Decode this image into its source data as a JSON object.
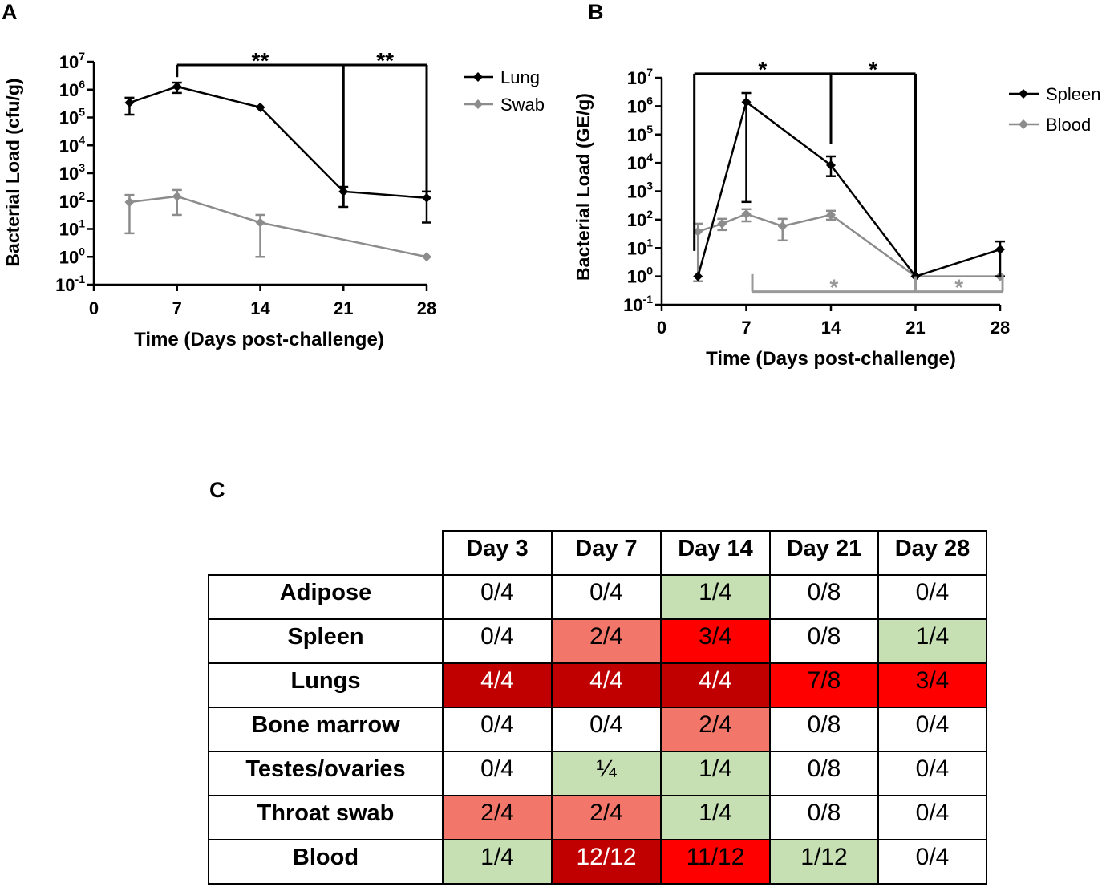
{
  "panels": {
    "a": "A",
    "b": "B",
    "c": "C"
  },
  "chart_data": [
    {
      "type": "line",
      "title": "",
      "xlabel": "Time (Days post-challenge)",
      "ylabel": "Bacterial Load (cfu/g)",
      "xlim": [
        0,
        28
      ],
      "ylim": [
        0.1,
        10000000
      ],
      "xticks": [
        "0",
        "7",
        "14",
        "21",
        "28"
      ],
      "yticks": [
        {
          "base": "10",
          "exp": "7"
        },
        {
          "base": "10",
          "exp": "6"
        },
        {
          "base": "10",
          "exp": "5"
        },
        {
          "base": "10",
          "exp": "4"
        },
        {
          "base": "10",
          "exp": "3"
        },
        {
          "base": "10",
          "exp": "2"
        },
        {
          "base": "10",
          "exp": "1"
        },
        {
          "base": "10",
          "exp": "0"
        },
        {
          "base": "10",
          "exp": "-1"
        }
      ],
      "grid": false,
      "legend": "right",
      "series": [
        {
          "name": "Lung",
          "color": "#000000",
          "points": [
            {
              "x": 3,
              "y": 340000,
              "err_low": 126000,
              "err_high": 510000
            },
            {
              "x": 7,
              "y": 1280000,
              "err_low": 760000,
              "err_high": 1780000
            },
            {
              "x": 14,
              "y": 230000
            },
            {
              "x": 21,
              "y": 220,
              "err_low": 62,
              "err_high": 324
            },
            {
              "x": 28,
              "y": 130,
              "err_low": 17,
              "err_high": 220
            }
          ]
        },
        {
          "name": "Swab",
          "color": "#8c8c8c",
          "points": [
            {
              "x": 3,
              "y": 92,
              "err_low": 7,
              "err_high": 166
            },
            {
              "x": 7,
              "y": 147,
              "err_low": 32,
              "err_high": 250
            },
            {
              "x": 14,
              "y": 17,
              "err_low": 1,
              "err_high": 32
            },
            {
              "x": 28,
              "y": 1
            }
          ]
        }
      ],
      "brackets": [
        {
          "color": "#000000",
          "level": 7700000,
          "ends": [
            {
              "x": 7,
              "to": 2800000
            },
            {
              "x": 21,
              "to": 62
            },
            {
              "x": 28,
              "to": 130
            }
          ],
          "labels": [
            "**",
            "**"
          ]
        }
      ]
    },
    {
      "type": "line",
      "title": "",
      "xlabel": "Time (Days post-challenge)",
      "ylabel": "Bacterial Load (GE/g)",
      "xlim": [
        0,
        28
      ],
      "ylim": [
        0.1,
        10000000
      ],
      "xticks": [
        "0",
        "7",
        "14",
        "21",
        "28"
      ],
      "yticks": [
        {
          "base": "10",
          "exp": "7"
        },
        {
          "base": "10",
          "exp": "6"
        },
        {
          "base": "10",
          "exp": "5"
        },
        {
          "base": "10",
          "exp": "4"
        },
        {
          "base": "10",
          "exp": "3"
        },
        {
          "base": "10",
          "exp": "2"
        },
        {
          "base": "10",
          "exp": "1"
        },
        {
          "base": "10",
          "exp": "0"
        },
        {
          "base": "10",
          "exp": "-1"
        }
      ],
      "grid": false,
      "legend": "right",
      "series": [
        {
          "name": "Spleen",
          "color": "#000000",
          "points": [
            {
              "x": 3,
              "y": 1
            },
            {
              "x": 7,
              "y": 1400000,
              "err_low": 420,
              "err_high": 2900000
            },
            {
              "x": 14,
              "y": 8300,
              "err_low": 3400,
              "err_high": 17000
            },
            {
              "x": 21,
              "y": 1
            },
            {
              "x": 28,
              "y": 8.9,
              "err_low": 1,
              "err_high": 17
            }
          ]
        },
        {
          "name": "Blood",
          "color": "#8c8c8c",
          "points": [
            {
              "x": 3,
              "y": 38,
              "err_low": 0.67,
              "err_high": 72
            },
            {
              "x": 5,
              "y": 72,
              "err_low": 43,
              "err_high": 107
            },
            {
              "x": 7,
              "y": 158,
              "err_low": 87,
              "err_high": 234
            },
            {
              "x": 10,
              "y": 59,
              "err_low": 18.5,
              "err_high": 107
            },
            {
              "x": 14,
              "y": 148,
              "err_low": 100,
              "err_high": 205
            },
            {
              "x": 21,
              "y": 1
            },
            {
              "x": 28,
              "y": 1
            }
          ]
        }
      ],
      "brackets": [
        {
          "color": "#000000",
          "level": 14000000,
          "ends": [
            {
              "x": 2.7,
              "to": 7.9
            },
            {
              "x": 14,
              "to": 45000
            },
            {
              "x": 21,
              "to": 1
            }
          ],
          "labels": [
            "*",
            "*"
          ]
        },
        {
          "color": "#999999",
          "level": 0.29,
          "ends": [
            {
              "x": 7.5,
              "to": 1.2
            },
            {
              "x": 21,
              "to": 1
            },
            {
              "x": 28.2,
              "to": 1.2
            }
          ],
          "labels": [
            "*",
            "*"
          ]
        }
      ]
    },
    {
      "type": "table",
      "columns": [
        "Day 3",
        "Day 7",
        "Day 14",
        "Day 21",
        "Day 28"
      ],
      "rows": [
        {
          "label": "Adipose",
          "cells": [
            {
              "value": "0/4",
              "fill": "#ffffff"
            },
            {
              "value": "0/4",
              "fill": "#ffffff"
            },
            {
              "value": "1/4",
              "fill": "#c6e0b4"
            },
            {
              "value": "0/8",
              "fill": "#ffffff"
            },
            {
              "value": "0/4",
              "fill": "#ffffff"
            }
          ]
        },
        {
          "label": "Spleen",
          "cells": [
            {
              "value": "0/4",
              "fill": "#ffffff"
            },
            {
              "value": "2/4",
              "fill": "#f2766a"
            },
            {
              "value": "3/4",
              "fill": "#ff0000"
            },
            {
              "value": "0/8",
              "fill": "#ffffff"
            },
            {
              "value": "1/4",
              "fill": "#c6e0b4"
            }
          ]
        },
        {
          "label": "Lungs",
          "cells": [
            {
              "value": "4/4",
              "fill": "#c00000",
              "ink": "#ffffff"
            },
            {
              "value": "4/4",
              "fill": "#c00000",
              "ink": "#ffffff"
            },
            {
              "value": "4/4",
              "fill": "#c00000",
              "ink": "#ffffff"
            },
            {
              "value": "7/8",
              "fill": "#ff0000"
            },
            {
              "value": "3/4",
              "fill": "#ff0000"
            }
          ]
        },
        {
          "label": "Bone marrow",
          "cells": [
            {
              "value": "0/4",
              "fill": "#ffffff"
            },
            {
              "value": "0/4",
              "fill": "#ffffff"
            },
            {
              "value": "2/4",
              "fill": "#f2766a"
            },
            {
              "value": "0/8",
              "fill": "#ffffff"
            },
            {
              "value": "0/4",
              "fill": "#ffffff"
            }
          ]
        },
        {
          "label": "Testes/ovaries",
          "cells": [
            {
              "value": "0/4",
              "fill": "#ffffff"
            },
            {
              "value": "¼",
              "fill": "#c6e0b4"
            },
            {
              "value": "1/4",
              "fill": "#c6e0b4"
            },
            {
              "value": "0/8",
              "fill": "#ffffff"
            },
            {
              "value": "0/4",
              "fill": "#ffffff"
            }
          ]
        },
        {
          "label": "Throat swab",
          "cells": [
            {
              "value": "2/4",
              "fill": "#f2766a"
            },
            {
              "value": "2/4",
              "fill": "#f2766a"
            },
            {
              "value": "1/4",
              "fill": "#c6e0b4"
            },
            {
              "value": "0/8",
              "fill": "#ffffff"
            },
            {
              "value": "0/4",
              "fill": "#ffffff"
            }
          ]
        },
        {
          "label": "Blood",
          "cells": [
            {
              "value": "1/4",
              "fill": "#c6e0b4"
            },
            {
              "value": "12/12",
              "fill": "#c00000",
              "ink": "#ffffff"
            },
            {
              "value": "11/12",
              "fill": "#ff0000"
            },
            {
              "value": "1/12",
              "fill": "#c6e0b4"
            },
            {
              "value": "0/4",
              "fill": "#ffffff"
            }
          ]
        }
      ]
    }
  ]
}
